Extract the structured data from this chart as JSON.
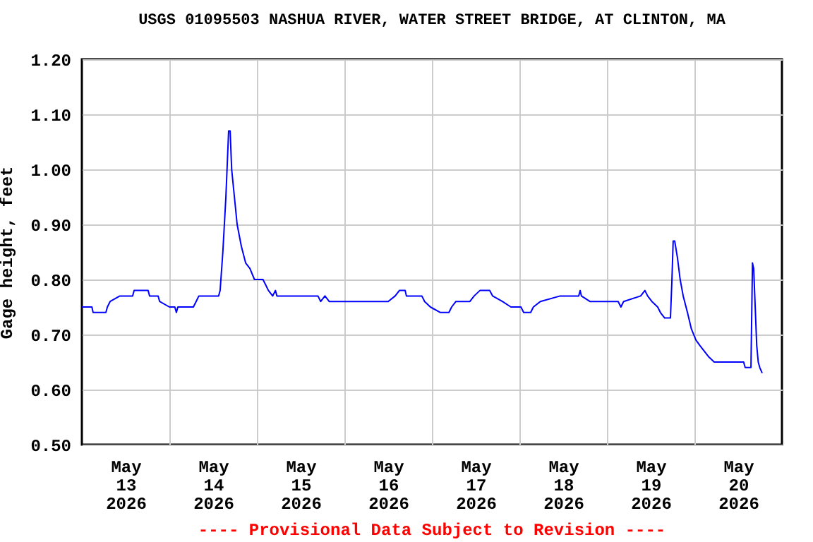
{
  "chart_data": {
    "type": "line",
    "title": "USGS 01095503 NASHUA RIVER, WATER STREET BRIDGE, AT CLINTON, MA",
    "ylabel": "Gage height, feet",
    "annotations": [
      "---- Provisional Data Subject to Revision ----"
    ],
    "series": [
      {
        "color": "#0000ff",
        "x": [
          "2026-05-13T00:00",
          "2026-05-13T02:45",
          "2026-05-13T03:05",
          "2026-05-13T06:35",
          "2026-05-13T07:00",
          "2026-05-13T07:45",
          "2026-05-13T10:25",
          "2026-05-13T13:55",
          "2026-05-13T14:20",
          "2026-05-13T18:10",
          "2026-05-13T18:35",
          "2026-05-13T20:55",
          "2026-05-13T21:20",
          "2026-05-14T00:00",
          "2026-05-14T01:30",
          "2026-05-14T01:55",
          "2026-05-14T02:20",
          "2026-05-14T06:35",
          "2026-05-14T07:20",
          "2026-05-14T08:05",
          "2026-05-14T13:30",
          "2026-05-14T13:55",
          "2026-05-14T14:40",
          "2026-05-14T15:30",
          "2026-05-14T16:15",
          "2026-05-14T16:40",
          "2026-05-14T17:05",
          "2026-05-14T17:50",
          "2026-05-14T18:35",
          "2026-05-14T19:45",
          "2026-05-14T20:55",
          "2026-05-14T22:05",
          "2026-05-14T23:20",
          "2026-05-15T01:40",
          "2026-05-15T02:25",
          "2026-05-15T03:10",
          "2026-05-15T04:20",
          "2026-05-15T05:05",
          "2026-05-15T05:30",
          "2026-05-15T16:45",
          "2026-05-15T17:30",
          "2026-05-15T18:40",
          "2026-05-15T19:50",
          "2026-05-16T12:00",
          "2026-05-16T13:55",
          "2026-05-16T15:05",
          "2026-05-16T16:40",
          "2026-05-16T17:00",
          "2026-05-16T21:15",
          "2026-05-16T22:00",
          "2026-05-16T23:35",
          "2026-05-17T02:20",
          "2026-05-17T04:40",
          "2026-05-17T05:25",
          "2026-05-17T06:35",
          "2026-05-17T10:25",
          "2026-05-17T11:35",
          "2026-05-17T13:10",
          "2026-05-17T15:50",
          "2026-05-17T16:40",
          "2026-05-17T19:20",
          "2026-05-17T21:40",
          "2026-05-18T00:25",
          "2026-05-18T01:10",
          "2026-05-18T03:05",
          "2026-05-18T03:50",
          "2026-05-18T05:45",
          "2026-05-18T11:10",
          "2026-05-18T16:15",
          "2026-05-18T16:40",
          "2026-05-18T17:00",
          "2026-05-18T19:20",
          "2026-05-19T03:05",
          "2026-05-19T03:50",
          "2026-05-19T04:35",
          "2026-05-19T09:15",
          "2026-05-19T10:25",
          "2026-05-19T11:10",
          "2026-05-19T12:20",
          "2026-05-19T13:55",
          "2026-05-19T14:40",
          "2026-05-19T15:50",
          "2026-05-19T17:25",
          "2026-05-19T17:50",
          "2026-05-19T18:10",
          "2026-05-19T18:35",
          "2026-05-19T19:20",
          "2026-05-19T20:05",
          "2026-05-19T20:55",
          "2026-05-19T22:05",
          "2026-05-19T23:10",
          "2026-05-20T00:25",
          "2026-05-20T01:30",
          "2026-05-20T02:40",
          "2026-05-20T03:50",
          "2026-05-20T05:25",
          "2026-05-20T13:30",
          "2026-05-20T13:55",
          "2026-05-20T15:30",
          "2026-05-20T15:55",
          "2026-05-20T16:15",
          "2026-05-20T16:40",
          "2026-05-20T17:05",
          "2026-05-20T17:30",
          "2026-05-20T17:55",
          "2026-05-20T18:35"
        ],
        "values": [
          0.75,
          0.75,
          0.74,
          0.74,
          0.75,
          0.76,
          0.77,
          0.77,
          0.78,
          0.78,
          0.77,
          0.77,
          0.76,
          0.75,
          0.75,
          0.74,
          0.75,
          0.75,
          0.76,
          0.77,
          0.77,
          0.78,
          0.85,
          0.95,
          1.07,
          1.07,
          1.0,
          0.95,
          0.9,
          0.86,
          0.83,
          0.82,
          0.8,
          0.8,
          0.79,
          0.78,
          0.77,
          0.78,
          0.77,
          0.77,
          0.76,
          0.77,
          0.76,
          0.76,
          0.77,
          0.78,
          0.78,
          0.77,
          0.77,
          0.76,
          0.75,
          0.74,
          0.74,
          0.75,
          0.76,
          0.76,
          0.77,
          0.78,
          0.78,
          0.77,
          0.76,
          0.75,
          0.75,
          0.74,
          0.74,
          0.75,
          0.76,
          0.77,
          0.77,
          0.78,
          0.77,
          0.76,
          0.76,
          0.75,
          0.76,
          0.77,
          0.78,
          0.77,
          0.76,
          0.75,
          0.74,
          0.73,
          0.73,
          0.8,
          0.87,
          0.87,
          0.84,
          0.8,
          0.77,
          0.74,
          0.71,
          0.69,
          0.68,
          0.67,
          0.66,
          0.65,
          0.65,
          0.64,
          0.64,
          0.83,
          0.82,
          0.75,
          0.68,
          0.65,
          0.64,
          0.63
        ]
      }
    ],
    "xlim": [
      "2026-05-13T00:00",
      "2026-05-21T00:00"
    ],
    "xticks": [
      {
        "value": "2026-05-13T12:00",
        "label": "May 13 2026"
      },
      {
        "value": "2026-05-14T00:00",
        "label": null
      },
      {
        "value": "2026-05-14T12:00",
        "label": "May 14 2026"
      },
      {
        "value": "2026-05-15T00:00",
        "label": null
      },
      {
        "value": "2026-05-15T12:00",
        "label": "May 15 2026"
      },
      {
        "value": "2026-05-16T00:00",
        "label": null
      },
      {
        "value": "2026-05-16T12:00",
        "label": "May 16 2026"
      },
      {
        "value": "2026-05-17T00:00",
        "label": null
      },
      {
        "value": "2026-05-17T12:00",
        "label": "May 17 2026"
      },
      {
        "value": "2026-05-18T00:00",
        "label": null
      },
      {
        "value": "2026-05-18T12:00",
        "label": "May 18 2026"
      },
      {
        "value": "2026-05-19T00:00",
        "label": null
      },
      {
        "value": "2026-05-19T12:00",
        "label": "May 19 2026"
      },
      {
        "value": "2026-05-20T00:00",
        "label": null
      },
      {
        "value": "2026-05-20T12:00",
        "label": "May 20 2026"
      }
    ],
    "ylim": [
      0.5,
      1.2
    ],
    "yticks": [
      {
        "value": 0.5,
        "label": "0.50"
      },
      {
        "value": 0.6,
        "label": "0.60"
      },
      {
        "value": 0.7,
        "label": "0.70"
      },
      {
        "value": 0.8,
        "label": "0.80"
      },
      {
        "value": 0.9,
        "label": "0.90"
      },
      {
        "value": 1.0,
        "label": "1.00"
      },
      {
        "value": 1.1,
        "label": "1.10"
      },
      {
        "value": 1.2,
        "label": "1.20"
      }
    ],
    "grid": true,
    "legend": false
  }
}
